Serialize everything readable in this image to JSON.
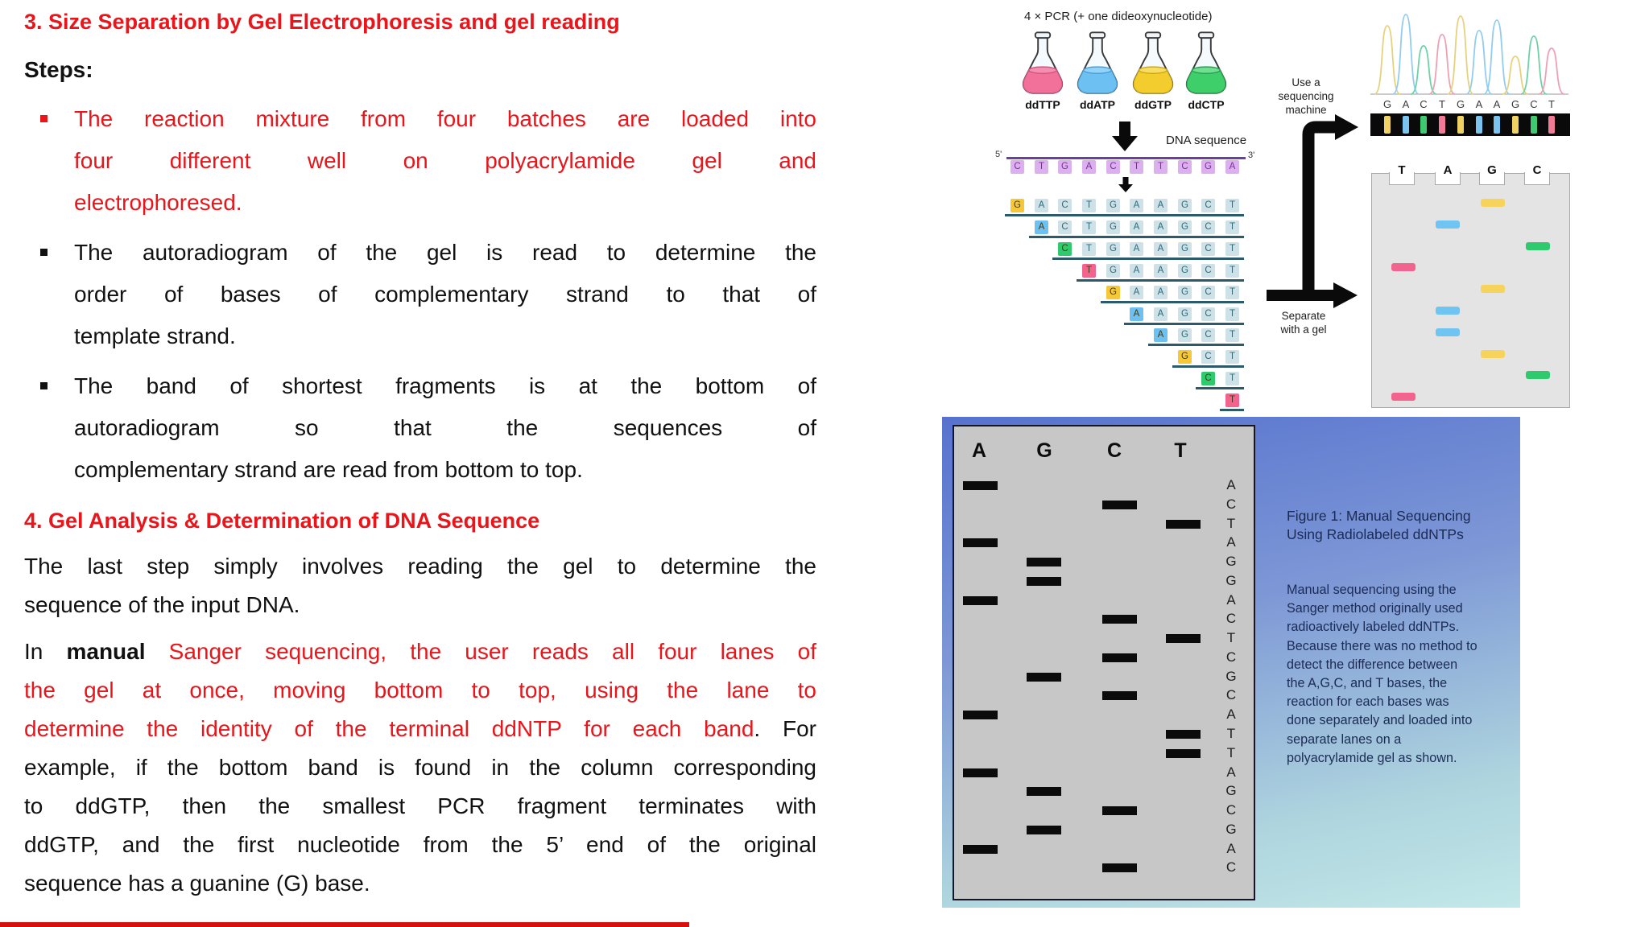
{
  "left": {
    "title3": "3. Size Separation by Gel Electrophoresis and gel reading",
    "steps_label": "Steps:",
    "bullets": [
      {
        "color": "red",
        "lines": [
          "The reaction mixture from four batches are loaded into",
          "four different well on polyacrylamide gel and",
          "electrophoresed."
        ]
      },
      {
        "color": "black",
        "lines": [
          "The autoradiogram of the gel is read to determine the",
          "order of bases of complementary strand to that of",
          "template strand."
        ]
      },
      {
        "color": "black",
        "lines": [
          "The band of shortest fragments is at the bottom of",
          "autoradiogram so that the sequences of",
          "complementary strand are read from bottom to top."
        ]
      }
    ],
    "title4": "4. Gel Analysis & Determination of DNA Sequence",
    "para1_lines": [
      "The last step simply involves reading the gel to determine the",
      "sequence of the input DNA."
    ],
    "para2_lines": [
      [
        {
          "text": "In ",
          "color": "black"
        },
        {
          "text": "manual",
          "color": "black",
          "bold": true
        },
        {
          "text": " ",
          "color": "black"
        },
        {
          "text": "Sanger sequencing, the user reads all four lanes of",
          "color": "red"
        }
      ],
      [
        {
          "text": "the gel at once, moving bottom to top, using the lane to",
          "color": "red"
        }
      ],
      [
        {
          "text": "determine the identity of the terminal ddNTP for each band",
          "color": "red"
        },
        {
          "text": ". For",
          "color": "black"
        }
      ],
      [
        {
          "text": "example, if the bottom band is found in the column corresponding",
          "color": "black"
        }
      ],
      [
        {
          "text": "to ddGTP, then the smallest PCR fragment terminates with",
          "color": "black"
        }
      ],
      [
        {
          "text": "ddGTP, and the first nucleotide from the 5’ end of the original",
          "color": "black"
        }
      ],
      [
        {
          "text": "sequence has a guanine (G) base.",
          "color": "black"
        }
      ]
    ]
  },
  "pcr": {
    "title": "4 × PCR (+ one dideoxynucleotide)",
    "flasks": [
      {
        "label": "ddTTP",
        "liquid": "#f2719b",
        "liquid_top": "#f58fb2",
        "edge": "#d4547f"
      },
      {
        "label": "ddATP",
        "liquid": "#6cc0f2",
        "liquid_top": "#93d3f7",
        "edge": "#4a9ed8"
      },
      {
        "label": "ddGTP",
        "liquid": "#f3cd2e",
        "liquid_top": "#f7dd63",
        "edge": "#cfa812"
      },
      {
        "label": "ddCTP",
        "liquid": "#3ecf6a",
        "liquid_top": "#70df92",
        "edge": "#26a24e"
      }
    ],
    "dna_label": "DNA sequence",
    "five_prime": "5'",
    "three_prime": "3'",
    "template": [
      "C",
      "T",
      "G",
      "A",
      "C",
      "T",
      "T",
      "C",
      "G",
      "A"
    ],
    "complement": [
      "G",
      "A",
      "C",
      "T",
      "G",
      "A",
      "A",
      "G",
      "C",
      "T"
    ]
  },
  "machine": {
    "use_label": "Use a\nsequencing\nmachine",
    "separate_label": "Separate\nwith a gel"
  },
  "chromatogram": {
    "peak_heights": [
      85,
      99,
      60,
      74,
      97,
      79,
      92,
      47,
      72,
      57
    ]
  },
  "small_gel": {
    "lanes": [
      "T",
      "A",
      "G",
      "C"
    ]
  },
  "figure": {
    "gel_lanes": [
      "A",
      "G",
      "C",
      "T"
    ],
    "sequence": [
      "A",
      "C",
      "T",
      "A",
      "G",
      "G",
      "A",
      "C",
      "T",
      "C",
      "G",
      "C",
      "A",
      "T",
      "T",
      "A",
      "G",
      "C",
      "G",
      "A",
      "C"
    ],
    "caption_title": "Figure 1: Manual Sequencing\nUsing Radiolabeled ddNTPs",
    "caption_body": "Manual sequencing using the\nSanger method originally used\nradioactively labeled ddNTPs.\nBecause there was no method to\ndetect the difference between\nthe A,G,C, and T bases, the\nreaction for each bases was\ndone separately and loaded into\nseparate lanes on a\npolyacrylamide gel as shown."
  },
  "colors": {
    "red_text": "#e8151b",
    "base_color_map": {
      "A": "blue",
      "C": "green",
      "G": "yellow",
      "T": "pink"
    },
    "box_fill": {
      "yellow": "#f6c838",
      "blue": "#6cc0f2",
      "green": "#2fc96e",
      "pink": "#f2648e"
    },
    "band_fill": {
      "yellow": "#f6d45c",
      "blue": "#6fc4f2",
      "green": "#2fc96e",
      "pink": "#f2648e"
    },
    "stripe_fill": {
      "yellow": "#f0d264",
      "blue": "#7cc4f0",
      "green": "#3fca72",
      "pink": "#f27a96"
    },
    "peak_stroke": {
      "yellow": "#e6d27c",
      "blue": "#92ccee",
      "green": "#6fd2a6",
      "pink": "#eea0b5"
    },
    "pale_box": "#cde1e7",
    "pale_box_text": "#2f6b7a",
    "purple_box": "#dcb0ee",
    "purple_text": "#7a2f9e",
    "strand_line": "#6b3fa0",
    "underline": "#2c5a6b",
    "gel_band_black": "#0b0b0b",
    "bottom_strip": "#d60f0f"
  }
}
